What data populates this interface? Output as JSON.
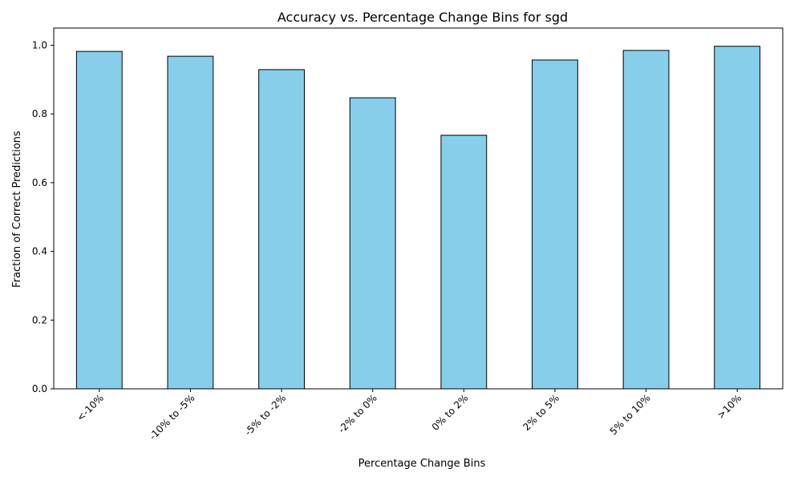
{
  "chart_data": {
    "type": "bar",
    "title": "Accuracy vs. Percentage Change Bins for sgd",
    "xlabel": "Percentage Change Bins",
    "ylabel": "Fraction of Correct Predictions",
    "categories": [
      "<-10%",
      "-10% to -5%",
      "-5% to -2%",
      "-2% to 0%",
      "0% to 2%",
      "2% to 5%",
      "5% to 10%",
      ">10%"
    ],
    "values": [
      0.982,
      0.968,
      0.929,
      0.847,
      0.738,
      0.957,
      0.985,
      0.997
    ],
    "ylim": [
      0,
      1.05
    ],
    "yticks": [
      0.0,
      0.2,
      0.4,
      0.6,
      0.8,
      1.0
    ],
    "ytick_labels": [
      "0.0",
      "0.2",
      "0.4",
      "0.6",
      "0.8",
      "1.0"
    ],
    "xtick_rotation_deg": 45,
    "grid": false,
    "legend": "none",
    "colors": {
      "bar_fill": "#87CEEB",
      "bar_edge": "#000000",
      "axes": "#000000",
      "background": "#ffffff"
    }
  }
}
